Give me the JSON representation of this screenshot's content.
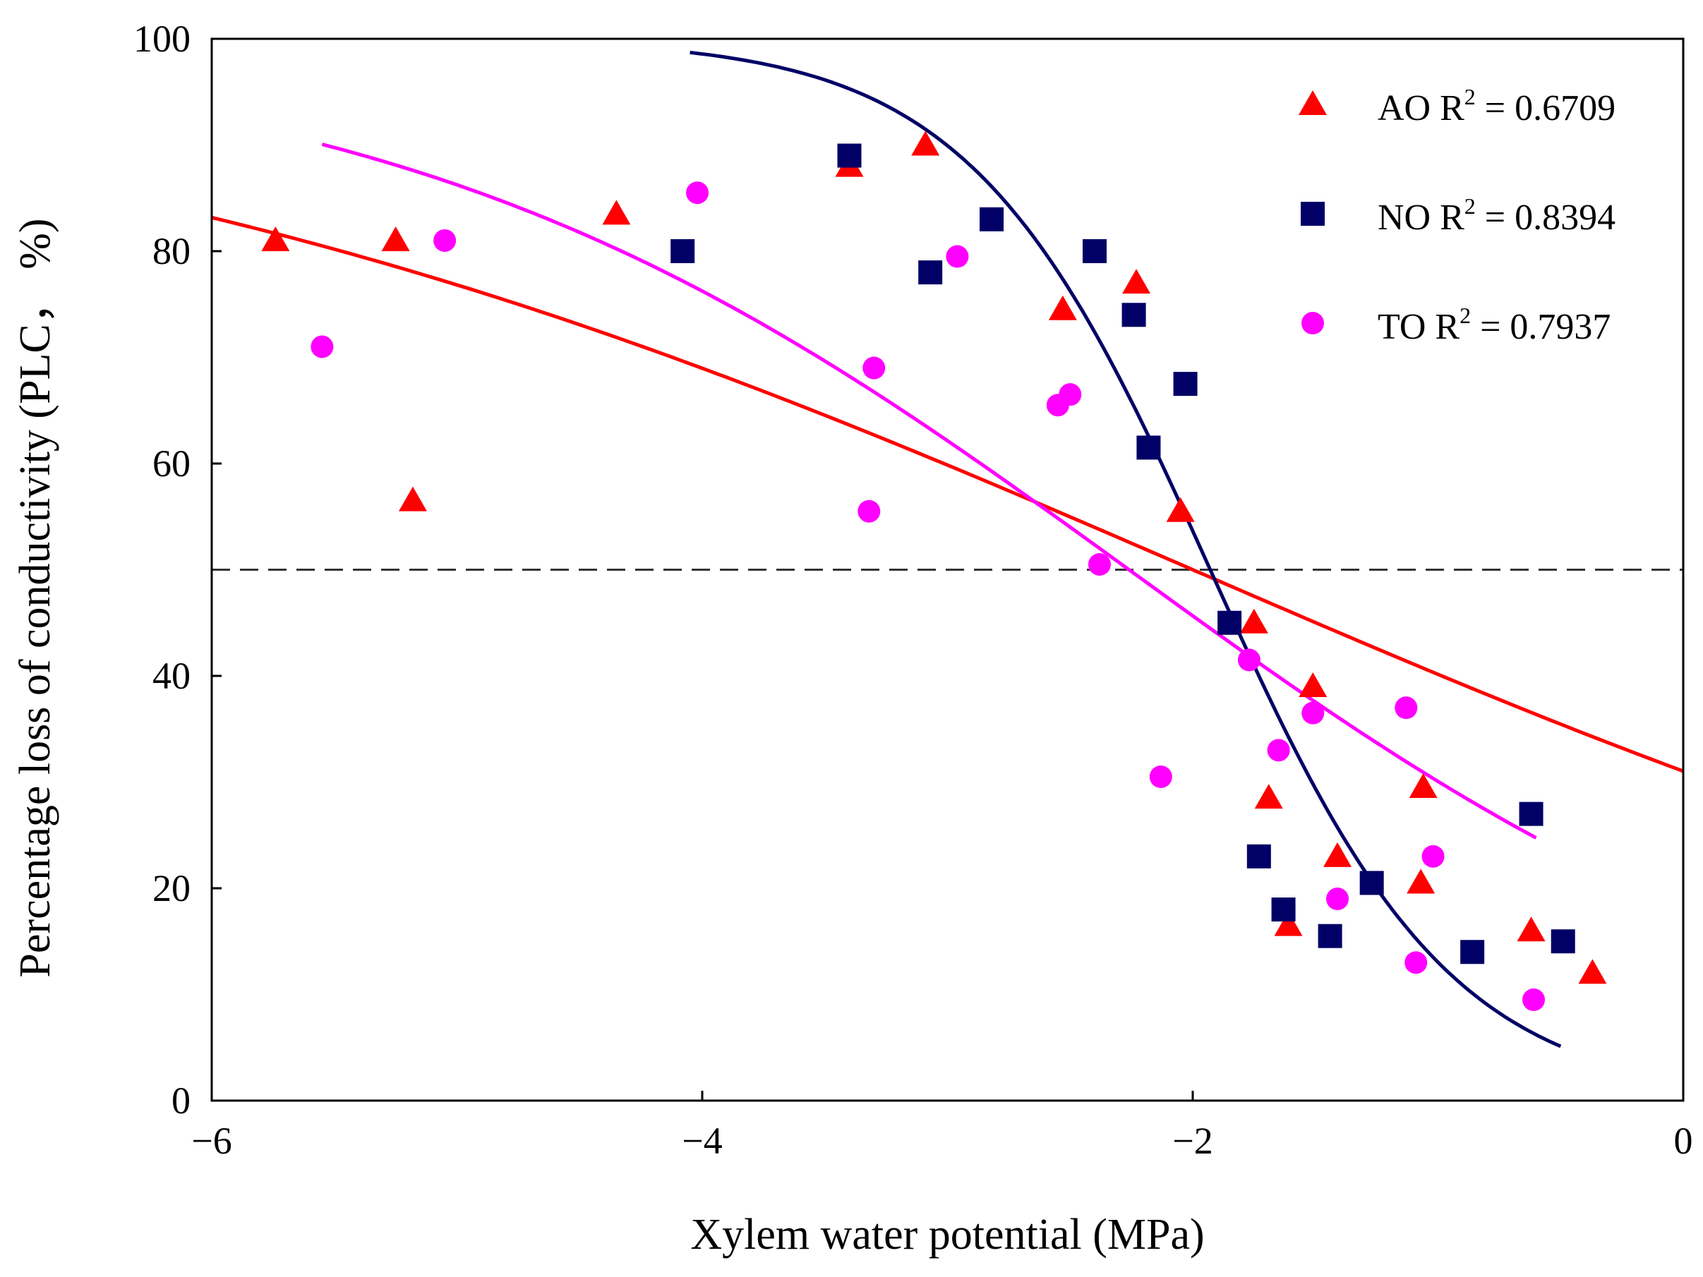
{
  "chart_data": {
    "type": "scatter",
    "xlabel": "Xylem water potential (MPa)",
    "ylabel": "Percentage loss of conductivity (PLC， %)",
    "xlim": [
      -6,
      0
    ],
    "ylim": [
      0,
      100
    ],
    "x_ticks": [
      "−6",
      "−4",
      "−2",
      "0"
    ],
    "y_ticks": [
      "0",
      "20",
      "40",
      "60",
      "80",
      "100"
    ],
    "x_tick_values": [
      -6,
      -4,
      -2,
      0
    ],
    "y_tick_values": [
      0,
      20,
      40,
      60,
      80,
      100
    ],
    "reference_line": {
      "y": 50,
      "style": "dashed"
    },
    "legend_position": "top-right",
    "series": [
      {
        "name": "AO",
        "r2_label": "R",
        "r2_sup": "2",
        "r2_value": "= 0.6709",
        "marker": "triangle",
        "color": "#ff0000",
        "points": [
          [
            -5.74,
            81
          ],
          [
            -5.25,
            81
          ],
          [
            -5.18,
            56.5
          ],
          [
            -4.35,
            83.5
          ],
          [
            -3.4,
            88
          ],
          [
            -3.09,
            90
          ],
          [
            -2.53,
            74.5
          ],
          [
            -2.23,
            77
          ],
          [
            -2.05,
            55.5
          ],
          [
            -1.75,
            45
          ],
          [
            -1.51,
            39
          ],
          [
            -1.69,
            28.5
          ],
          [
            -1.06,
            29.5
          ],
          [
            -1.41,
            23
          ],
          [
            -1.07,
            20.5
          ],
          [
            -1.61,
            16.5
          ],
          [
            -0.62,
            16
          ],
          [
            -0.37,
            12
          ]
        ],
        "fit": {
          "type": "logistic",
          "a": 0.3994,
          "b": -2.0,
          "top": 100,
          "x_range": [
            -6,
            0
          ]
        }
      },
      {
        "name": "NO",
        "r2_label": "R",
        "r2_sup": "2",
        "r2_value": "= 0.8394",
        "marker": "square",
        "color": "#000066",
        "points": [
          [
            -4.08,
            80
          ],
          [
            -3.4,
            89
          ],
          [
            -3.07,
            78
          ],
          [
            -2.82,
            83
          ],
          [
            -2.4,
            80
          ],
          [
            -2.24,
            74
          ],
          [
            -2.18,
            61.5
          ],
          [
            -2.03,
            67.5
          ],
          [
            -1.85,
            45
          ],
          [
            -1.73,
            23
          ],
          [
            -1.63,
            18
          ],
          [
            -1.44,
            15.5
          ],
          [
            -1.27,
            20.5
          ],
          [
            -0.86,
            14
          ],
          [
            -0.62,
            27
          ],
          [
            -0.49,
            15
          ]
        ],
        "fit": {
          "type": "logistic",
          "a": 2.044,
          "b": -1.9286,
          "top": 100,
          "x_range": [
            -4.05,
            -0.5
          ]
        }
      },
      {
        "name": "TO",
        "r2_label": "R",
        "r2_sup": "2",
        "r2_value": "= 0.7937",
        "marker": "circle",
        "color": "#ff00ff",
        "points": [
          [
            -5.55,
            71
          ],
          [
            -5.05,
            81
          ],
          [
            -4.02,
            85.5
          ],
          [
            -3.3,
            69
          ],
          [
            -3.32,
            55.5
          ],
          [
            -2.96,
            79.5
          ],
          [
            -2.55,
            65.5
          ],
          [
            -2.5,
            66.5
          ],
          [
            -2.38,
            50.5
          ],
          [
            -2.13,
            30.5
          ],
          [
            -1.77,
            41.5
          ],
          [
            -1.65,
            33
          ],
          [
            -1.51,
            36.5
          ],
          [
            -1.41,
            19
          ],
          [
            -1.13,
            37
          ],
          [
            -1.02,
            23
          ],
          [
            -1.09,
            13
          ],
          [
            -0.61,
            9.5
          ]
        ],
        "fit": {
          "type": "logistic",
          "a": 0.67,
          "b": -2.26,
          "top": 100,
          "x_range": [
            -5.55,
            -0.6
          ]
        }
      }
    ]
  }
}
